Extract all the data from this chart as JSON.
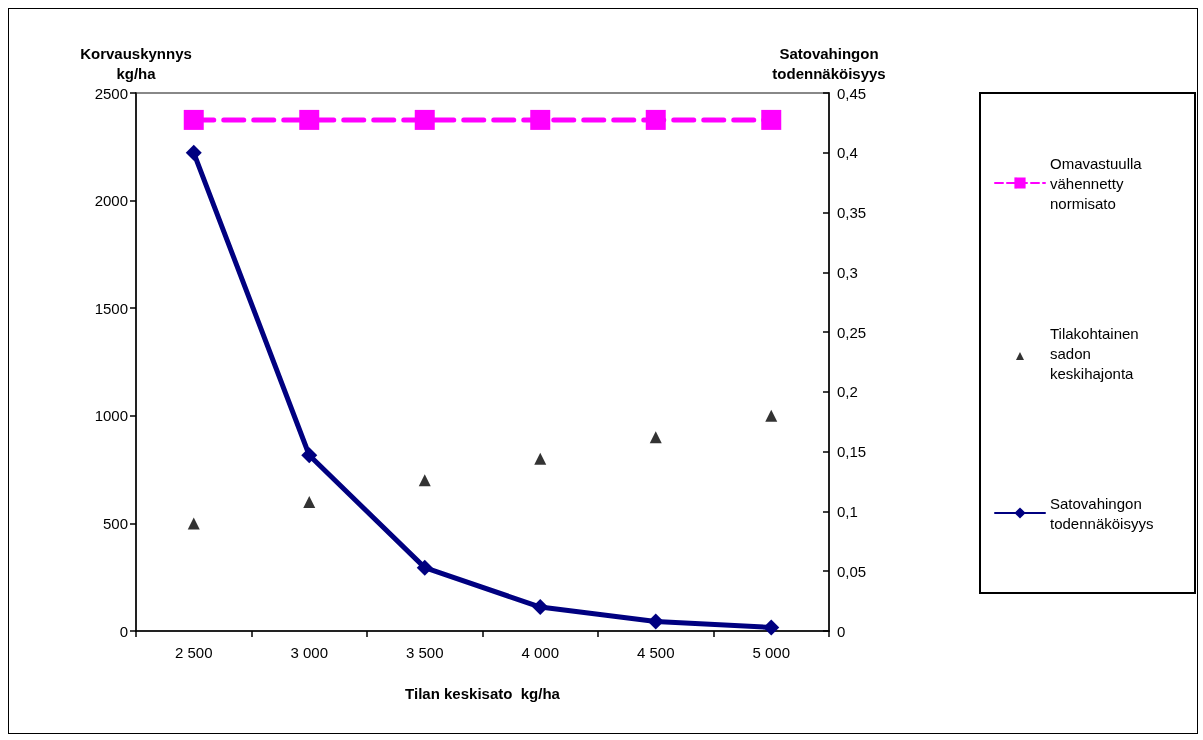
{
  "chart_data": {
    "type": "line",
    "xlabel": "Tilan keskisato  kg/ha",
    "ylabel": "Korvauskynnys kg/ha",
    "y2label": "Satovahingon todennäköisyys",
    "categories": [
      "2 500",
      "3 000",
      "3 500",
      "4 000",
      "4 500",
      "5 000"
    ],
    "ylim": [
      0,
      2500
    ],
    "yticks": [
      0,
      500,
      1000,
      1500,
      2000,
      2500
    ],
    "y2lim": [
      0,
      0.45
    ],
    "y2ticks": [
      {
        "value": 0,
        "label": "0"
      },
      {
        "value": 0.05,
        "label": "0,05"
      },
      {
        "value": 0.1,
        "label": "0,1"
      },
      {
        "value": 0.15,
        "label": "0,15"
      },
      {
        "value": 0.2,
        "label": "0,2"
      },
      {
        "value": 0.25,
        "label": "0,25"
      },
      {
        "value": 0.3,
        "label": "0,3"
      },
      {
        "value": 0.35,
        "label": "0,35"
      },
      {
        "value": 0.4,
        "label": "0,4"
      },
      {
        "value": 0.45,
        "label": "0,45"
      }
    ],
    "grid": false,
    "legend": "right",
    "series": [
      {
        "name": "Omavastuulla vähennetty normisato",
        "color": "#ff00ff",
        "marker": "square",
        "line_style": "dashed",
        "values": [
          2375,
          2375,
          2375,
          2375,
          2375,
          2375
        ]
      },
      {
        "name": "Tilakohtainen sadon keskihajonta",
        "type": "scatter",
        "color": "#000000",
        "marker": "triangle",
        "values": [
          500,
          600,
          700,
          800,
          900,
          1000
        ]
      },
      {
        "name": "Satovahingon todennäköisyys",
        "color": "#000080",
        "marker": "diamond",
        "line_style": "solid",
        "axis": "y2",
        "values": [
          0.4,
          0.147,
          0.053,
          0.02,
          0.008,
          0.003
        ]
      }
    ]
  }
}
